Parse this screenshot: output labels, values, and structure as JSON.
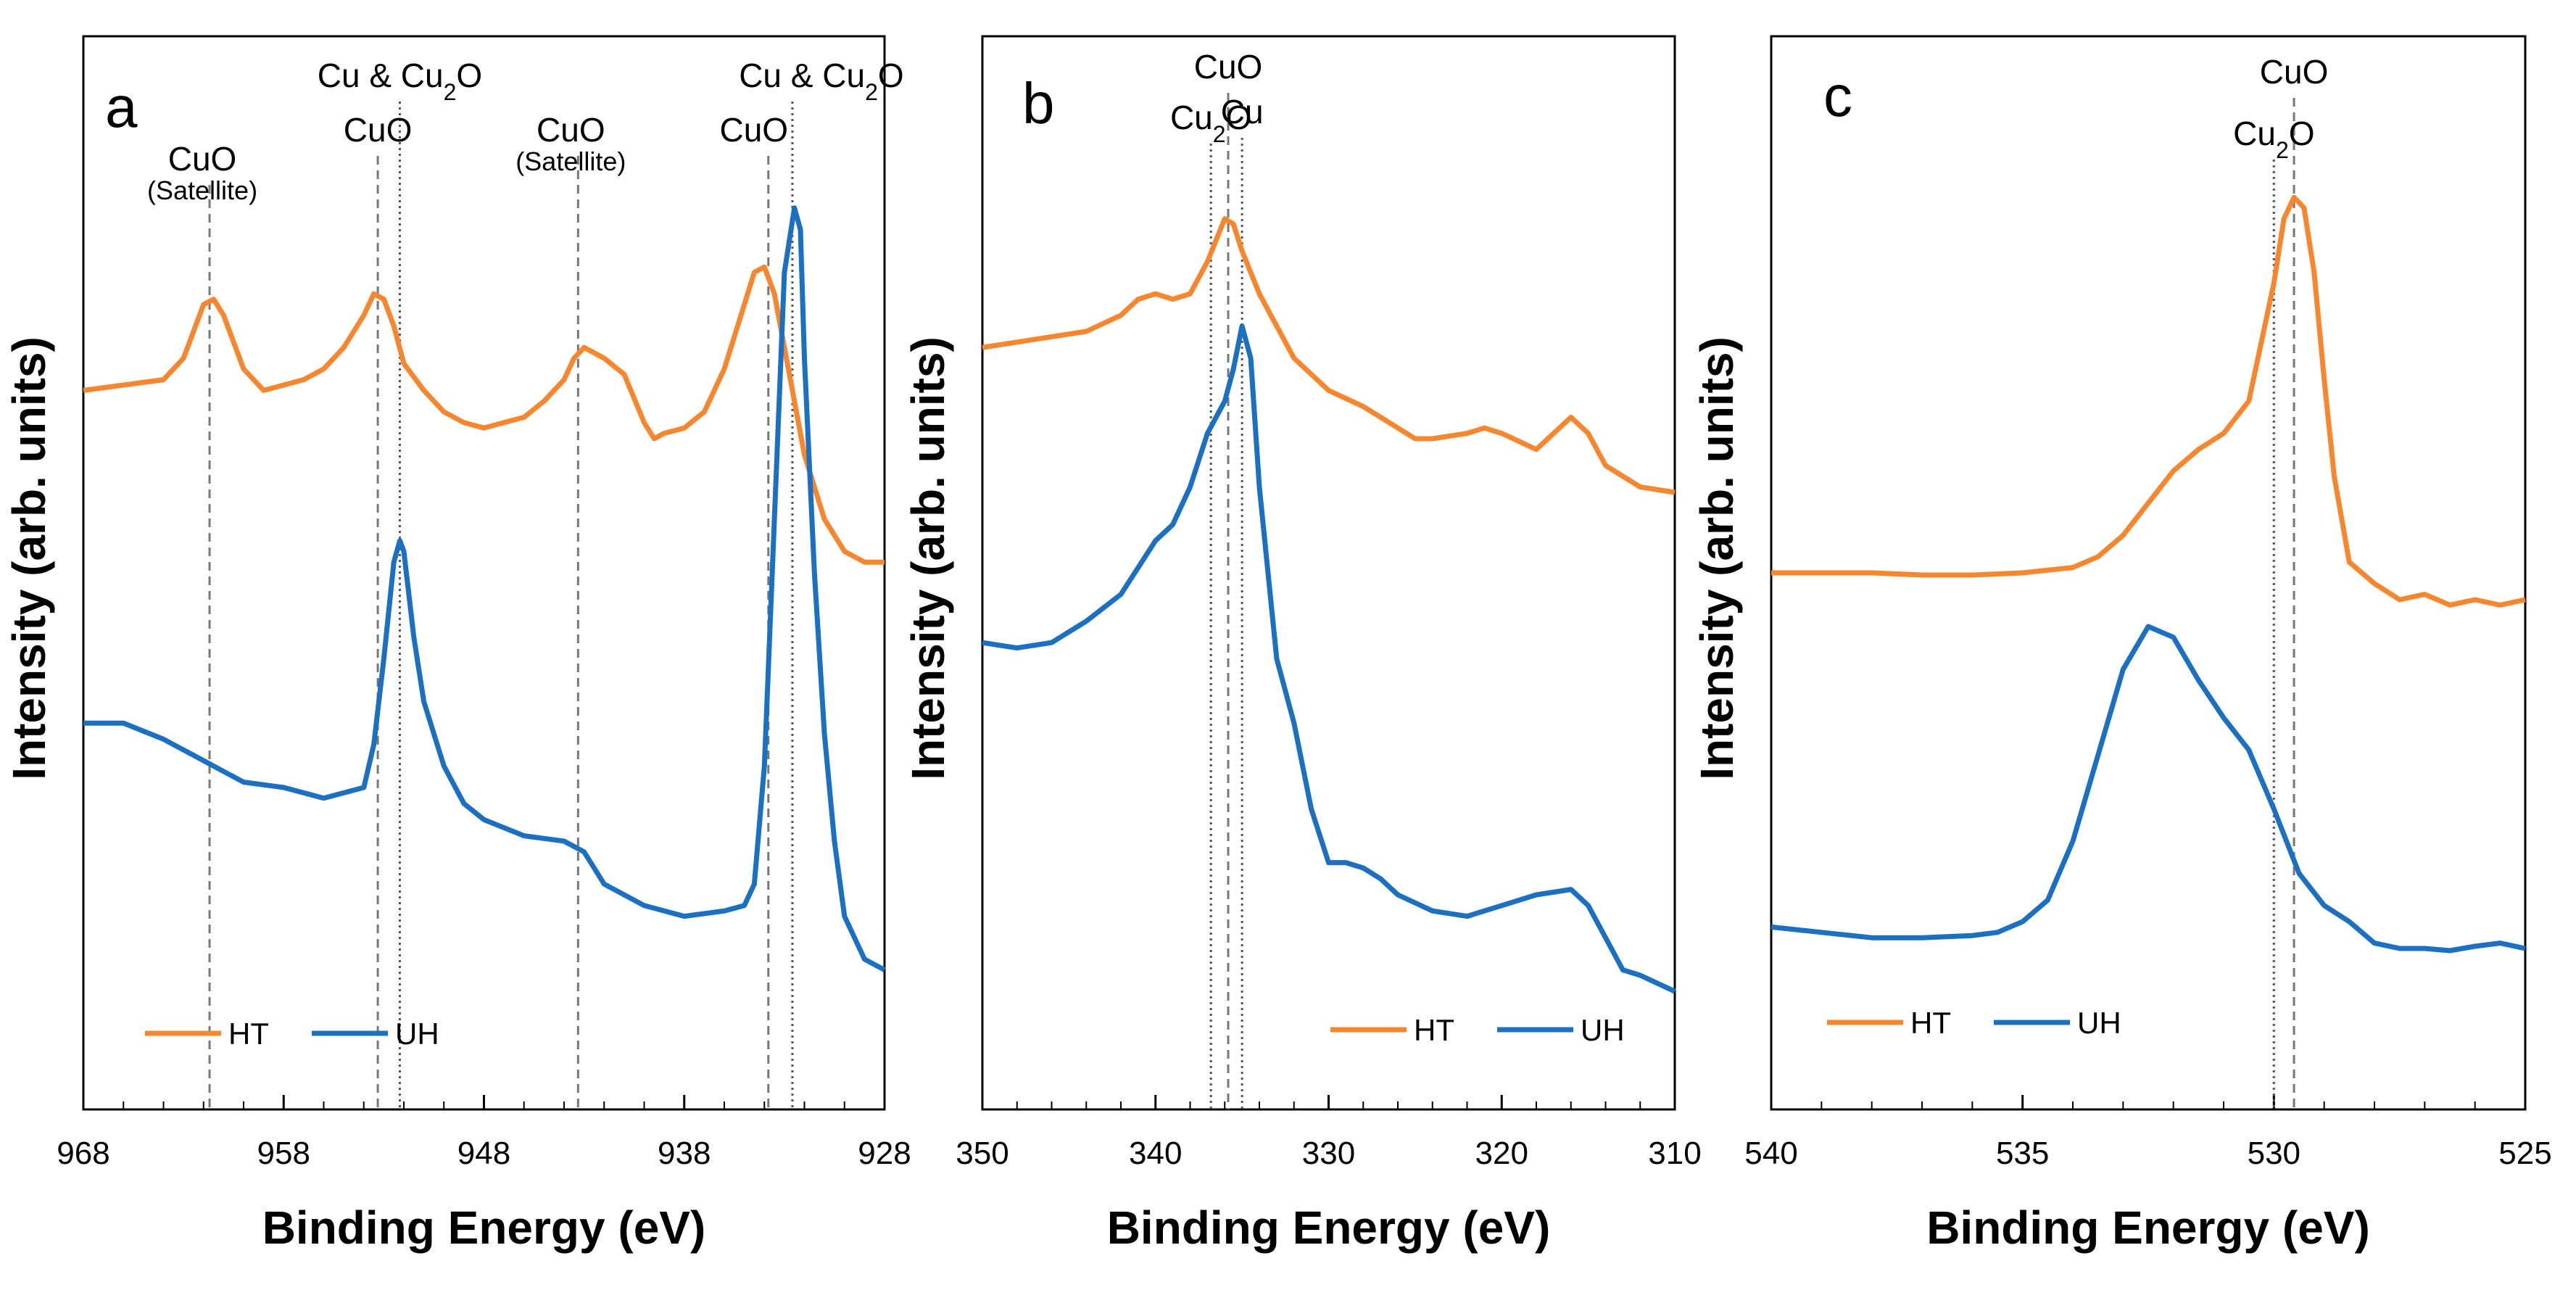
{
  "chart_data": [
    {
      "type": "line",
      "panel": "a",
      "xlabel": "Binding Energy (eV)",
      "ylabel": "Intensity (arb. units)",
      "xlim": [
        968,
        928
      ],
      "ylim": [
        0,
        10
      ],
      "xticks": [
        968,
        958,
        948,
        938,
        928
      ],
      "legend": [
        "HT",
        "UH"
      ],
      "colors": {
        "HT": "#f7872f",
        "UH": "#1b70c2"
      },
      "ref_lines": [
        {
          "x": 961.7,
          "style": "dashed"
        },
        {
          "x": 953.3,
          "style": "dashed"
        },
        {
          "x": 952.2,
          "style": "dotted"
        },
        {
          "x": 943.3,
          "style": "dashed"
        },
        {
          "x": 933.8,
          "style": "dashed"
        },
        {
          "x": 932.6,
          "style": "dotted"
        }
      ],
      "annotations": [
        {
          "label": "CuO",
          "sub": "(Satellite)",
          "x": 961.7
        },
        {
          "label": "CuO",
          "x": 953.3
        },
        {
          "label": "Cu & Cu",
          "sub2": "2",
          "after": "O",
          "x": 952.2
        },
        {
          "label": "CuO",
          "sub": "(Satellite)",
          "x": 943.3
        },
        {
          "label": "CuO",
          "x": 933.8
        },
        {
          "label": "Cu & Cu",
          "sub2": "2",
          "after": "O",
          "x": 932.6
        }
      ],
      "series": [
        {
          "name": "HT",
          "x": [
            968,
            966,
            964,
            963,
            962,
            961.5,
            961,
            960,
            959,
            958,
            957,
            956,
            955,
            954,
            953.5,
            953,
            952.5,
            952,
            951,
            950,
            949,
            948,
            947,
            946,
            945,
            944,
            943.5,
            943,
            942,
            941,
            940,
            939.5,
            939,
            938,
            937,
            936,
            935,
            934.5,
            934,
            933.5,
            933,
            932.5,
            932,
            931,
            930,
            929,
            928
          ],
          "y": [
            6.7,
            6.75,
            6.8,
            7.0,
            7.5,
            7.55,
            7.4,
            6.9,
            6.7,
            6.75,
            6.8,
            6.9,
            7.1,
            7.4,
            7.6,
            7.55,
            7.3,
            6.95,
            6.7,
            6.5,
            6.4,
            6.35,
            6.4,
            6.45,
            6.6,
            6.8,
            7.0,
            7.1,
            7.0,
            6.85,
            6.4,
            6.25,
            6.3,
            6.35,
            6.5,
            6.9,
            7.5,
            7.8,
            7.85,
            7.6,
            7.1,
            6.6,
            6.1,
            5.5,
            5.2,
            5.1,
            5.1
          ]
        },
        {
          "name": "UH",
          "x": [
            968,
            966,
            964,
            962,
            961,
            960,
            958,
            956,
            954,
            953.5,
            953,
            952.5,
            952.2,
            952,
            951.5,
            951,
            950,
            949,
            948,
            946,
            944,
            943,
            942,
            940,
            938,
            936,
            935,
            934.5,
            934,
            933.5,
            933,
            932.5,
            932.2,
            932,
            931.5,
            931,
            930.5,
            930,
            929,
            928
          ],
          "y": [
            3.6,
            3.6,
            3.45,
            3.25,
            3.15,
            3.05,
            3.0,
            2.9,
            3.0,
            3.4,
            4.2,
            5.1,
            5.3,
            5.2,
            4.4,
            3.8,
            3.2,
            2.85,
            2.7,
            2.55,
            2.5,
            2.4,
            2.1,
            1.9,
            1.8,
            1.85,
            1.9,
            2.1,
            3.2,
            5.5,
            7.8,
            8.4,
            8.2,
            7.0,
            5.0,
            3.5,
            2.5,
            1.8,
            1.4,
            1.3
          ]
        }
      ]
    },
    {
      "type": "line",
      "panel": "b",
      "xlabel": "Binding Energy (eV)",
      "ylabel": "Intensity (arb. units)",
      "xlim": [
        350,
        310
      ],
      "ylim": [
        0,
        10
      ],
      "xticks": [
        350,
        340,
        330,
        320,
        310
      ],
      "legend": [
        "HT",
        "UH"
      ],
      "colors": {
        "HT": "#f7872f",
        "UH": "#1b70c2"
      },
      "ref_lines": [
        {
          "x": 336.8,
          "style": "dotted"
        },
        {
          "x": 335.8,
          "style": "dashed"
        },
        {
          "x": 335.0,
          "style": "dotted"
        }
      ],
      "annotations": [
        {
          "label": "Cu",
          "sub2": "2",
          "after": "O",
          "x": 336.8
        },
        {
          "label": "CuO",
          "x": 335.8
        },
        {
          "label": "Cu",
          "x": 335.0
        }
      ],
      "series": [
        {
          "name": "HT",
          "x": [
            350,
            348,
            346,
            344,
            342,
            341,
            340,
            339,
            338,
            337,
            336,
            335.5,
            335,
            334,
            333,
            332,
            330,
            328,
            326,
            325,
            324,
            322,
            321,
            320,
            318,
            317,
            316,
            315,
            314,
            312,
            310
          ],
          "y": [
            7.1,
            7.15,
            7.2,
            7.25,
            7.4,
            7.55,
            7.6,
            7.55,
            7.6,
            7.9,
            8.3,
            8.25,
            8.0,
            7.6,
            7.3,
            7.0,
            6.7,
            6.55,
            6.35,
            6.25,
            6.25,
            6.3,
            6.35,
            6.3,
            6.15,
            6.3,
            6.45,
            6.3,
            6.0,
            5.8,
            5.75
          ]
        },
        {
          "name": "UH",
          "x": [
            350,
            348,
            346,
            344,
            342,
            341,
            340,
            339,
            338,
            337,
            336,
            335.5,
            335,
            334.5,
            334,
            333,
            332,
            331,
            330,
            329,
            328,
            327,
            326,
            324,
            322,
            320,
            318,
            316,
            315,
            314,
            313,
            312,
            310
          ],
          "y": [
            4.35,
            4.3,
            4.35,
            4.55,
            4.8,
            5.05,
            5.3,
            5.45,
            5.8,
            6.3,
            6.6,
            6.9,
            7.3,
            7.0,
            5.8,
            4.2,
            3.6,
            2.8,
            2.3,
            2.3,
            2.25,
            2.15,
            2.0,
            1.85,
            1.8,
            1.9,
            2.0,
            2.05,
            1.9,
            1.6,
            1.3,
            1.25,
            1.1
          ]
        }
      ]
    },
    {
      "type": "line",
      "panel": "c",
      "xlabel": "Binding Energy (eV)",
      "ylabel": "Intensity (arb. units)",
      "xlim": [
        540,
        525
      ],
      "ylim": [
        0,
        10
      ],
      "xticks": [
        540,
        535,
        530,
        525
      ],
      "legend": [
        "HT",
        "UH"
      ],
      "colors": {
        "HT": "#f7872f",
        "UH": "#1b70c2"
      },
      "ref_lines": [
        {
          "x": 530.0,
          "style": "dotted"
        },
        {
          "x": 529.6,
          "style": "dashed"
        }
      ],
      "annotations": [
        {
          "label": "Cu",
          "sub2": "2",
          "after": "O",
          "x": 530.0
        },
        {
          "label": "CuO",
          "x": 529.6
        }
      ],
      "series": [
        {
          "name": "HT",
          "x": [
            540,
            539,
            538,
            537,
            536,
            535,
            534,
            533.5,
            533,
            532.5,
            532,
            531.5,
            531,
            530.5,
            530,
            529.8,
            529.6,
            529.4,
            529.2,
            529,
            528.8,
            528.5,
            528,
            527.5,
            527,
            526.5,
            526,
            525.5,
            525
          ],
          "y": [
            5.0,
            5.0,
            5.0,
            4.98,
            4.98,
            5.0,
            5.05,
            5.15,
            5.35,
            5.65,
            5.95,
            6.15,
            6.3,
            6.6,
            7.7,
            8.3,
            8.5,
            8.4,
            7.8,
            6.8,
            5.9,
            5.1,
            4.9,
            4.75,
            4.8,
            4.7,
            4.75,
            4.7,
            4.75
          ]
        },
        {
          "name": "UH",
          "x": [
            540,
            539,
            538,
            537,
            536,
            535.5,
            535,
            534.5,
            534,
            533.5,
            533,
            532.5,
            532,
            531.5,
            531,
            530.5,
            530,
            529.5,
            529,
            528.5,
            528,
            527.5,
            527,
            526.5,
            526,
            525.5,
            525
          ],
          "y": [
            1.7,
            1.65,
            1.6,
            1.6,
            1.62,
            1.65,
            1.75,
            1.95,
            2.5,
            3.3,
            4.1,
            4.5,
            4.4,
            4.0,
            3.65,
            3.35,
            2.8,
            2.2,
            1.9,
            1.75,
            1.55,
            1.5,
            1.5,
            1.48,
            1.52,
            1.55,
            1.5
          ]
        }
      ]
    }
  ]
}
